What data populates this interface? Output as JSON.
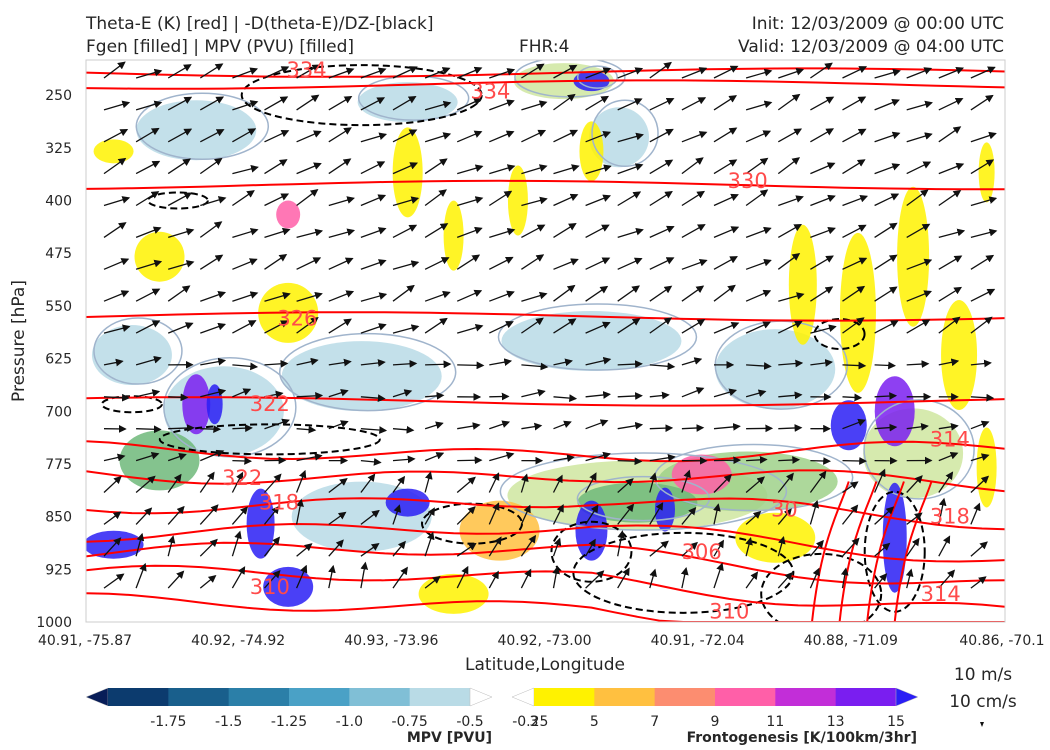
{
  "title_left": [
    "Theta-E (K) [red] | -D(theta-E)/DZ-[black]",
    "Fgen [filled] | MPV (PVU) [filled]"
  ],
  "title_center": "FHR:4",
  "title_right": [
    "Init: 12/03/2009 @ 00:00 UTC",
    "Valid: 12/03/2009 @ 04:00 UTC"
  ],
  "chart_data": {
    "type": "cross-section",
    "xlabel": "Latitude,Longitude",
    "ylabel": "Pressure [hPa]",
    "x_ticks": [
      "40.91, -75.87",
      "40.92, -74.92",
      "40.93, -73.96",
      "40.92, -73.00",
      "40.91, -72.04",
      "40.88, -71.09",
      "40.86, -70.1"
    ],
    "y_ticks": [
      250,
      325,
      400,
      475,
      550,
      625,
      700,
      775,
      850,
      925,
      1000
    ],
    "ylim": [
      1000,
      200
    ],
    "theta_e_labels": [
      {
        "text": "334",
        "x": 0.24,
        "p": 214
      },
      {
        "text": "334",
        "x": 0.44,
        "p": 245
      },
      {
        "text": "330",
        "x": 0.72,
        "p": 372
      },
      {
        "text": "326",
        "x": 0.23,
        "p": 568
      },
      {
        "text": "322",
        "x": 0.2,
        "p": 690
      },
      {
        "text": "322",
        "x": 0.17,
        "p": 795
      },
      {
        "text": "318",
        "x": 0.21,
        "p": 830
      },
      {
        "text": "310",
        "x": 0.2,
        "p": 950
      },
      {
        "text": "306",
        "x": 0.67,
        "p": 900
      },
      {
        "text": "30",
        "x": 0.76,
        "p": 840
      },
      {
        "text": "310",
        "x": 0.7,
        "p": 985
      },
      {
        "text": "314",
        "x": 0.93,
        "p": 960
      },
      {
        "text": "314",
        "x": 0.94,
        "p": 740
      },
      {
        "text": "318",
        "x": 0.94,
        "p": 850
      }
    ],
    "theta_e_lines_y": [
      218,
      235,
      378,
      565,
      686,
      758,
      790,
      830,
      870,
      900,
      935,
      975
    ],
    "mpv_colorbar": {
      "label": "MPV [PVU]",
      "levels": [
        -1.75,
        -1.5,
        -1.25,
        -1.0,
        -0.75,
        -0.5,
        -0.25
      ],
      "tick_text": [
        "-1.75",
        "-1.5",
        "-1.25",
        "-1.0",
        "-0.75",
        "-0.5",
        "-0.25"
      ],
      "colors": [
        "#081d58",
        "#0c3b6e",
        "#195f8c",
        "#2b7fa8",
        "#4aa1c6",
        "#80bfd6",
        "#b9dbe6",
        "#ffffff"
      ]
    },
    "fgen_colorbar": {
      "label": "Frontogenesis [K/100km/3hr]",
      "levels": [
        3,
        5,
        7,
        9,
        11,
        13,
        15
      ],
      "tick_text": [
        "3",
        "5",
        "7",
        "9",
        "11",
        "13",
        "15"
      ],
      "colors": [
        "#ffffff",
        "#fff200",
        "#ffc040",
        "#fc8d70",
        "#ff5fa8",
        "#c22ed8",
        "#7a1ef0",
        "#2a1ef5"
      ]
    },
    "wind_key": [
      "10 m/s",
      "10 cm/s"
    ]
  },
  "colors": {
    "theta_e": "#ff0000",
    "gradient": "#000000",
    "contour_gray": "#a0b4cc"
  }
}
